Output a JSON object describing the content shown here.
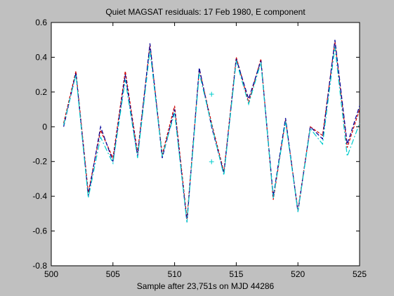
{
  "chart_data": {
    "type": "line",
    "title": "Quiet MAGSAT residuals: 17 Feb 1980, E component",
    "xlabel": "Sample after 23,751s on MJD 44286",
    "ylabel": "",
    "xlim": [
      500,
      525
    ],
    "ylim": [
      -0.8,
      0.6
    ],
    "xticks": [
      500,
      505,
      510,
      515,
      520,
      525
    ],
    "yticks": [
      -0.8,
      -0.6,
      -0.4,
      -0.2,
      0,
      0.2,
      0.4,
      0.6
    ],
    "xtick_labels": [
      "500",
      "505",
      "510",
      "515",
      "520",
      "525"
    ],
    "ytick_labels": [
      "-0.8",
      "-0.6",
      "-0.4",
      "-0.2",
      "0",
      "0.2",
      "0.4",
      "0.6"
    ],
    "grid": false,
    "legend": false,
    "x": [
      501,
      502,
      503,
      504,
      505,
      506,
      507,
      508,
      509,
      510,
      511,
      512,
      513,
      514,
      515,
      516,
      517,
      518,
      519,
      520,
      521,
      522,
      523,
      524,
      525
    ],
    "series": [
      {
        "color": "#cc0000",
        "dash": "4,2",
        "values": [
          0.02,
          0.32,
          -0.38,
          -0.02,
          -0.18,
          0.32,
          -0.15,
          0.47,
          -0.16,
          0.12,
          -0.53,
          0.33,
          0.02,
          -0.26,
          0.4,
          0.14,
          0.39,
          -0.42,
          0.04,
          -0.48,
          0.0,
          -0.05,
          0.49,
          -0.12,
          0.1
        ]
      },
      {
        "color": "#000099",
        "dash": "6,3",
        "values": [
          0.0,
          0.31,
          -0.4,
          0.0,
          -0.2,
          0.3,
          -0.17,
          0.48,
          -0.18,
          0.1,
          -0.55,
          0.34,
          0.0,
          -0.27,
          0.39,
          0.16,
          0.38,
          -0.4,
          0.05,
          -0.49,
          0.0,
          -0.07,
          0.5,
          -0.1,
          0.12
        ]
      },
      {
        "color": "#00cccc",
        "dash": "8,3,2,3",
        "values": [
          0.01,
          0.3,
          -0.41,
          -0.06,
          -0.21,
          0.27,
          -0.18,
          0.44,
          -0.17,
          0.08,
          -0.55,
          0.31,
          0.01,
          -0.28,
          0.38,
          0.13,
          0.37,
          -0.41,
          0.03,
          -0.49,
          -0.01,
          -0.1,
          0.46,
          -0.17,
          0.02
        ]
      }
    ],
    "markers": [
      {
        "x": 513,
        "y": 0.19,
        "symbol": "+",
        "color": "#00cccc"
      },
      {
        "x": 513,
        "y": -0.2,
        "symbol": "+",
        "color": "#00cccc"
      }
    ]
  }
}
